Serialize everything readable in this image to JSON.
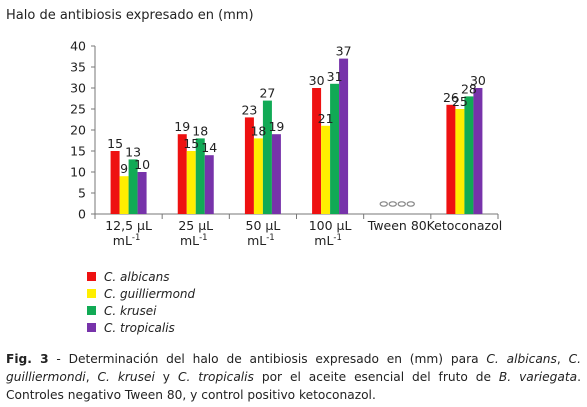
{
  "chart_data": {
    "type": "bar",
    "title": "Halo de antibiosis expresado en (mm)",
    "categories": [
      {
        "label": "12,5 µL",
        "unit": "mL",
        "exp": "-1"
      },
      {
        "label": "25 µL",
        "unit": "mL",
        "exp": "-1"
      },
      {
        "label": "50 µL",
        "unit": "mL",
        "exp": "-1"
      },
      {
        "label": "100 µL",
        "unit": "mL",
        "exp": "-1"
      },
      {
        "label": "Tween 80",
        "unit": "",
        "exp": ""
      },
      {
        "label": "Ketoconazol",
        "unit": "",
        "exp": ""
      }
    ],
    "series": [
      {
        "name": "C. albicans",
        "color": "#ee1111",
        "values": [
          15,
          19,
          23,
          30,
          0,
          26
        ]
      },
      {
        "name": "C. guilliermond",
        "color": "#ffee00",
        "values": [
          9,
          15,
          18,
          21,
          0,
          25
        ]
      },
      {
        "name": "C. krusei",
        "color": "#11aa55",
        "values": [
          13,
          18,
          27,
          31,
          0,
          28
        ]
      },
      {
        "name": "C. tropicalis",
        "color": "#7733aa",
        "values": [
          10,
          14,
          19,
          37,
          0,
          30
        ]
      }
    ],
    "ylim": [
      0,
      40
    ],
    "yticks": [
      0,
      5,
      10,
      15,
      20,
      25,
      30,
      35,
      40
    ],
    "grid": false,
    "legend_position": "bottom-left"
  },
  "caption": {
    "fig_label": "Fig. 3",
    "text_1": " - Determinación del halo de antibiosis expresado en (mm) para ",
    "sp1": "C. albicans",
    "sep1": ", ",
    "sp2": "C. guilliermondi",
    "sep2": ", ",
    "sp3": "C. krusei",
    "sep3": " y ",
    "sp4": "C. tropicalis",
    "text_2": " por el aceite esencial del fruto de ",
    "sp5": "B. variegata",
    "text_3": ". Controles negativo Tween 80, y control positivo ketoconazol."
  }
}
